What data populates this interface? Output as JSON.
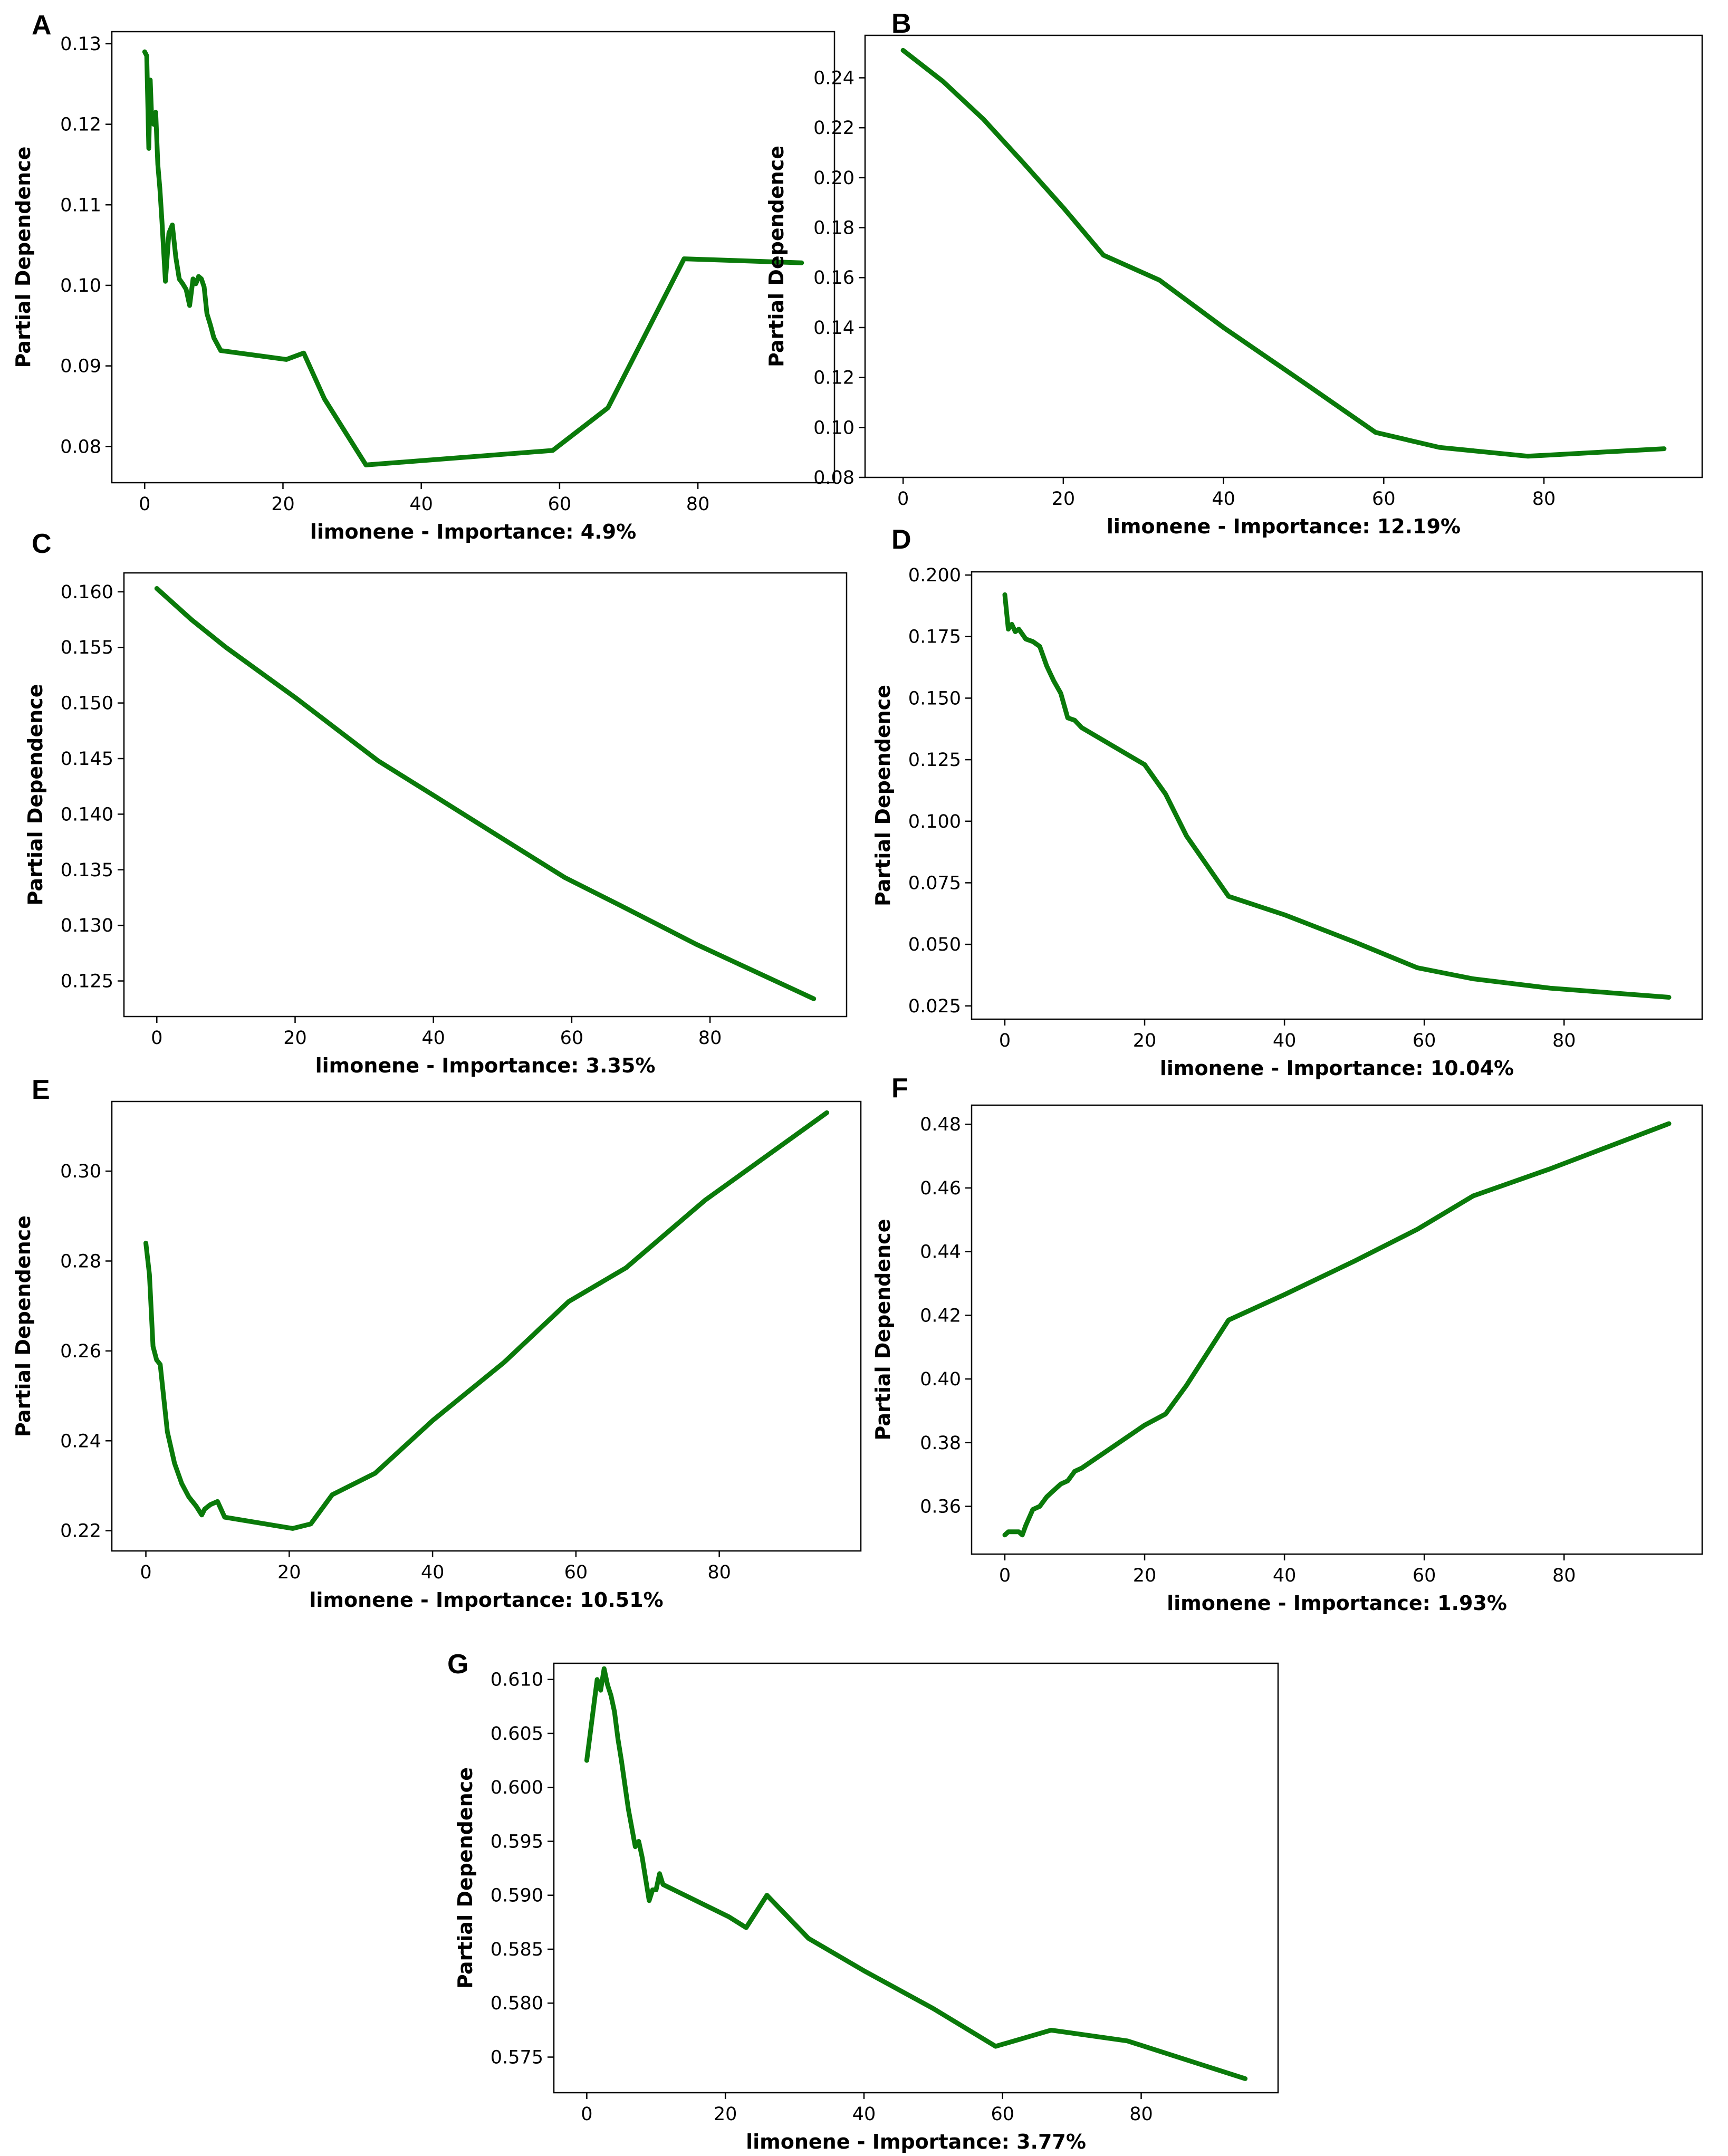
{
  "figure": {
    "line_color": "#0a7a0a"
  },
  "chart_data": [
    {
      "panel": "A",
      "type": "line",
      "xlabel": "limonene - Importance: 4.9%",
      "ylabel": "Partial Dependence",
      "xlim": [
        -4.75,
        99.75
      ],
      "ylim": [
        0.0755,
        0.1315
      ],
      "xticks": [
        0,
        20,
        40,
        60,
        80
      ],
      "xtick_labels": [
        "0",
        "20",
        "40",
        "60",
        "80"
      ],
      "yticks": [
        0.08,
        0.09,
        0.1,
        0.11,
        0.12,
        0.13
      ],
      "ytick_labels": [
        "0.08",
        "0.09",
        "0.10",
        "0.11",
        "0.12",
        "0.13"
      ],
      "x": [
        0,
        0.3,
        0.6,
        0.8,
        1.0,
        1.3,
        1.6,
        1.9,
        2.2,
        2.5,
        3.0,
        3.5,
        4.0,
        4.5,
        5.0,
        5.5,
        6.0,
        6.5,
        7.0,
        7.4,
        7.8,
        8.2,
        8.6,
        9.0,
        9.5,
        10,
        11,
        20.5,
        23,
        26,
        32,
        59,
        67,
        78,
        95
      ],
      "y": [
        0.129,
        0.1285,
        0.117,
        0.1255,
        0.121,
        0.12,
        0.1215,
        0.115,
        0.112,
        0.108,
        0.1005,
        0.1065,
        0.1075,
        0.1035,
        0.1008,
        0.1002,
        0.0995,
        0.0975,
        0.1008,
        0.1002,
        0.1011,
        0.1008,
        0.0998,
        0.0965,
        0.0951,
        0.0935,
        0.0919,
        0.0908,
        0.0916,
        0.0859,
        0.0777,
        0.0795,
        0.0848,
        0.1033,
        0.1028
      ]
    },
    {
      "panel": "B",
      "type": "line",
      "xlabel": "limonene - Importance: 12.19%",
      "ylabel": "Partial Dependence",
      "xlim": [
        -4.75,
        99.75
      ],
      "ylim": [
        0.08,
        0.257
      ],
      "xticks": [
        0,
        20,
        40,
        60,
        80
      ],
      "xtick_labels": [
        "0",
        "20",
        "40",
        "60",
        "80"
      ],
      "yticks": [
        0.08,
        0.1,
        0.12,
        0.14,
        0.16,
        0.18,
        0.2,
        0.22,
        0.24
      ],
      "ytick_labels": [
        "0.08",
        "0.10",
        "0.12",
        "0.14",
        "0.16",
        "0.18",
        "0.20",
        "0.22",
        "0.24"
      ],
      "x": [
        0,
        5,
        10,
        15,
        20,
        25,
        32,
        40,
        50,
        59,
        67,
        78,
        95
      ],
      "y": [
        0.251,
        0.2385,
        0.2235,
        0.206,
        0.188,
        0.169,
        0.159,
        0.14,
        0.118,
        0.098,
        0.092,
        0.0885,
        0.0915
      ]
    },
    {
      "panel": "C",
      "type": "line",
      "xlabel": "limonene - Importance: 3.35%",
      "ylabel": "Partial Dependence",
      "xlim": [
        -4.75,
        99.75
      ],
      "ylim": [
        0.1218,
        0.1617
      ],
      "xticks": [
        0,
        20,
        40,
        60,
        80
      ],
      "xtick_labels": [
        "0",
        "20",
        "40",
        "60",
        "80"
      ],
      "yticks": [
        0.125,
        0.13,
        0.135,
        0.14,
        0.145,
        0.15,
        0.155,
        0.16
      ],
      "ytick_labels": [
        "0.125",
        "0.130",
        "0.135",
        "0.140",
        "0.145",
        "0.150",
        "0.155",
        "0.160"
      ],
      "x": [
        0,
        5,
        10,
        20,
        32,
        40,
        50,
        59,
        67,
        78,
        95
      ],
      "y": [
        0.1603,
        0.1575,
        0.155,
        0.1505,
        0.1448,
        0.1417,
        0.1378,
        0.1343,
        0.1318,
        0.1283,
        0.1234
      ]
    },
    {
      "panel": "D",
      "type": "line",
      "xlabel": "limonene - Importance: 10.04%",
      "ylabel": "Partial Dependence",
      "xlim": [
        -4.75,
        99.75
      ],
      "ylim": [
        0.0196,
        0.2013
      ],
      "xticks": [
        0,
        20,
        40,
        60,
        80
      ],
      "xtick_labels": [
        "0",
        "20",
        "40",
        "60",
        "80"
      ],
      "yticks": [
        0.025,
        0.05,
        0.075,
        0.1,
        0.125,
        0.15,
        0.175,
        0.2
      ],
      "ytick_labels": [
        "0.025",
        "0.050",
        "0.075",
        "0.100",
        "0.125",
        "0.150",
        "0.175",
        "0.200"
      ],
      "x": [
        0,
        0.5,
        1,
        1.5,
        2,
        3,
        4,
        5,
        6,
        7,
        8,
        9,
        10,
        11,
        20,
        23,
        26,
        32,
        40,
        50,
        59,
        67,
        78,
        95
      ],
      "y": [
        0.192,
        0.178,
        0.18,
        0.177,
        0.178,
        0.174,
        0.173,
        0.171,
        0.163,
        0.157,
        0.152,
        0.142,
        0.141,
        0.138,
        0.123,
        0.111,
        0.094,
        0.0695,
        0.062,
        0.051,
        0.0405,
        0.036,
        0.0322,
        0.0285
      ]
    },
    {
      "panel": "E",
      "type": "line",
      "xlabel": "limonene - Importance: 10.51%",
      "ylabel": "Partial Dependence",
      "xlim": [
        -4.75,
        99.75
      ],
      "ylim": [
        0.2155,
        0.3155
      ],
      "xticks": [
        0,
        20,
        40,
        60,
        80
      ],
      "xtick_labels": [
        "0",
        "20",
        "40",
        "60",
        "80"
      ],
      "yticks": [
        0.22,
        0.24,
        0.26,
        0.28,
        0.3
      ],
      "ytick_labels": [
        "0.22",
        "0.24",
        "0.26",
        "0.28",
        "0.30"
      ],
      "x": [
        0,
        0.5,
        1,
        1.5,
        2,
        3,
        4,
        5,
        6,
        7,
        7.8,
        8.2,
        9,
        10,
        11,
        20.5,
        23,
        26,
        32,
        40,
        50,
        59,
        67,
        78,
        95
      ],
      "y": [
        0.284,
        0.277,
        0.261,
        0.258,
        0.257,
        0.242,
        0.235,
        0.2305,
        0.2275,
        0.2255,
        0.2235,
        0.2248,
        0.2258,
        0.2265,
        0.223,
        0.2205,
        0.2215,
        0.228,
        0.2328,
        0.2445,
        0.2575,
        0.271,
        0.2785,
        0.2935,
        0.313
      ]
    },
    {
      "panel": "F",
      "type": "line",
      "xlabel": "limonene - Importance: 1.93%",
      "ylabel": "Partial Dependence",
      "xlim": [
        -4.75,
        99.75
      ],
      "ylim": [
        0.345,
        0.486
      ],
      "xticks": [
        0,
        20,
        40,
        60,
        80
      ],
      "xtick_labels": [
        "0",
        "20",
        "40",
        "60",
        "80"
      ],
      "yticks": [
        0.36,
        0.38,
        0.4,
        0.42,
        0.44,
        0.46,
        0.48
      ],
      "ytick_labels": [
        "0.36",
        "0.38",
        "0.40",
        "0.42",
        "0.44",
        "0.46",
        "0.48"
      ],
      "x": [
        0,
        0.5,
        1,
        1.5,
        2,
        2.5,
        3,
        4,
        5,
        6,
        7,
        8,
        9,
        10,
        11,
        20,
        23,
        26,
        32,
        40,
        50,
        59,
        67,
        78,
        95
      ],
      "y": [
        0.351,
        0.352,
        0.352,
        0.352,
        0.352,
        0.351,
        0.354,
        0.359,
        0.36,
        0.363,
        0.365,
        0.367,
        0.368,
        0.371,
        0.372,
        0.3855,
        0.389,
        0.398,
        0.4185,
        0.4265,
        0.437,
        0.447,
        0.4575,
        0.466,
        0.4802
      ]
    },
    {
      "panel": "G",
      "type": "line",
      "xlabel": "limonene - Importance: 3.77%",
      "ylabel": "Partial Dependence",
      "xlim": [
        -4.75,
        99.75
      ],
      "ylim": [
        0.5717,
        0.6115
      ],
      "xticks": [
        0,
        20,
        40,
        60,
        80
      ],
      "xtick_labels": [
        "0",
        "20",
        "40",
        "60",
        "80"
      ],
      "yticks": [
        0.575,
        0.58,
        0.585,
        0.59,
        0.595,
        0.6,
        0.605,
        0.61
      ],
      "ytick_labels": [
        "0.575",
        "0.580",
        "0.585",
        "0.590",
        "0.595",
        "0.600",
        "0.605",
        "0.610"
      ],
      "x": [
        0,
        0.5,
        1,
        1.5,
        2,
        2.5,
        3,
        3.5,
        4,
        4.5,
        5,
        6,
        7,
        7.5,
        8,
        8.5,
        9,
        9.5,
        10,
        10.5,
        11,
        20.5,
        23,
        26,
        32,
        40,
        50,
        59,
        67,
        78,
        95
      ],
      "y": [
        0.6025,
        0.605,
        0.6075,
        0.61,
        0.609,
        0.611,
        0.6095,
        0.6085,
        0.607,
        0.6045,
        0.6025,
        0.598,
        0.5945,
        0.595,
        0.5935,
        0.5915,
        0.5895,
        0.5905,
        0.5905,
        0.592,
        0.591,
        0.588,
        0.587,
        0.59,
        0.586,
        0.583,
        0.5795,
        0.576,
        0.5775,
        0.5765,
        0.573
      ]
    }
  ]
}
